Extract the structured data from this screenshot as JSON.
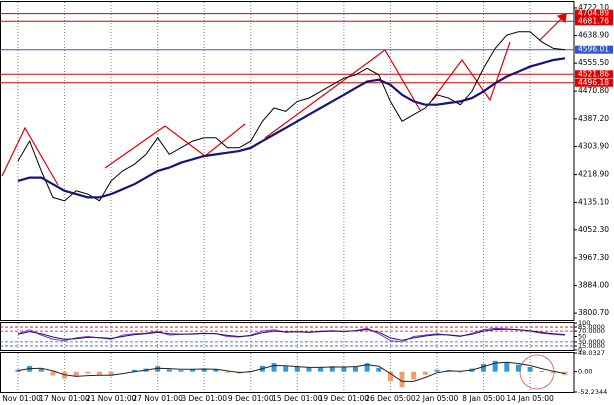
{
  "chart_data": [
    {
      "type": "line",
      "categories": [
        "1 Nov 01:00",
        null,
        null,
        null,
        "17 Nov 01:00",
        null,
        null,
        null,
        "21 Nov 01:00",
        null,
        null,
        null,
        "27 Nov 01:00",
        null,
        null,
        null,
        "3 Dec 01:00",
        null,
        null,
        null,
        "9 Dec 01:00",
        null,
        null,
        null,
        "15 Dec 01:00",
        null,
        null,
        null,
        "19 Dec 01:00",
        null,
        null,
        null,
        "26 Dec 05:00",
        null,
        null,
        null,
        "2 Jan 05:00",
        null,
        null,
        null,
        "8 Jan 05:00",
        null,
        null,
        null,
        "14 Jan 05:00",
        null,
        null,
        null
      ],
      "series": [
        {
          "color": "#000000",
          "values": [
            4260,
            4320,
            4230,
            4150,
            4140,
            4170,
            4160,
            4140,
            4200,
            4230,
            4250,
            4280,
            4330,
            4280,
            4300,
            4320,
            4330,
            4330,
            4300,
            4300,
            4320,
            4380,
            4420,
            4410,
            4440,
            4450,
            4470,
            4490,
            4510,
            4520,
            4540,
            4520,
            4440,
            4380,
            4400,
            4420,
            4460,
            4450,
            4430,
            4470,
            4540,
            4600,
            4640,
            4650,
            4650,
            4620,
            4600,
            4596
          ]
        },
        {
          "color": "#14147a",
          "values": [
            4200,
            4210,
            4210,
            4190,
            4170,
            4160,
            4150,
            4150,
            4160,
            4175,
            4190,
            4210,
            4230,
            4240,
            4255,
            4265,
            4275,
            4280,
            4285,
            4290,
            4300,
            4320,
            4340,
            4360,
            4380,
            4400,
            4420,
            4440,
            4460,
            4480,
            4500,
            4505,
            4490,
            4460,
            4440,
            4430,
            4430,
            4435,
            4440,
            4450,
            4470,
            4495,
            4515,
            4530,
            4545,
            4555,
            4565,
            4570
          ]
        }
      ],
      "ylim": [
        3780,
        4740
      ],
      "yticks": [
        {
          "value": 4722.1,
          "label": "4722.10"
        },
        {
          "value": 4638.9,
          "label": "4638.90"
        },
        {
          "value": 4555.5,
          "label": "4555.50"
        },
        {
          "value": 4470.8,
          "label": "4470.80"
        },
        {
          "value": 4387.2,
          "label": "4387.20"
        },
        {
          "value": 4303.9,
          "label": "4303.90"
        },
        {
          "value": 4218.9,
          "label": "4218.90"
        },
        {
          "value": 4135.1,
          "label": "4135.10"
        },
        {
          "value": 4052.3,
          "label": "4052.30"
        },
        {
          "value": 3967.3,
          "label": "3967.30"
        },
        {
          "value": 3884,
          "label": "3884.00"
        },
        {
          "value": 3800.7,
          "label": "3800.70"
        }
      ],
      "levels": [
        {
          "value": 4704.89,
          "color": "#e00000"
        },
        {
          "value": 4681.76,
          "color": "#e00000"
        },
        {
          "value": 4596.01,
          "color": "#3355cc"
        },
        {
          "value": 4521.86,
          "color": "#e00000"
        },
        {
          "value": 4496.18,
          "color": "#e00000"
        }
      ]
    },
    {
      "type": "line",
      "series": [
        {
          "color": "#8a2be2",
          "values": [
            60,
            75,
            55,
            40,
            35,
            45,
            50,
            45,
            40,
            55,
            60,
            62,
            70,
            55,
            58,
            60,
            62,
            60,
            50,
            48,
            55,
            70,
            75,
            65,
            68,
            65,
            70,
            72,
            68,
            72,
            80,
            60,
            35,
            30,
            50,
            55,
            60,
            55,
            50,
            62,
            75,
            80,
            78,
            75,
            70,
            62,
            58,
            55
          ]
        },
        {
          "color": "#1a1a60",
          "values": [
            58,
            68,
            60,
            48,
            40,
            42,
            47,
            46,
            43,
            50,
            57,
            60,
            65,
            60,
            58,
            59,
            61,
            60,
            54,
            50,
            53,
            64,
            70,
            67,
            67,
            66,
            68,
            70,
            69,
            71,
            76,
            66,
            45,
            36,
            45,
            52,
            57,
            56,
            52,
            58,
            70,
            76,
            77,
            75,
            71,
            65,
            60,
            57
          ]
        }
      ],
      "ylim": [
        0,
        100
      ],
      "yticks": [
        100,
        {
          "value": 85,
          "label": "85.0000"
        },
        {
          "value": 70,
          "label": "70.0000"
        },
        50,
        {
          "value": 30,
          "label": "30.0000"
        },
        {
          "value": 15,
          "label": "15.0000"
        },
        0
      ],
      "levels": [
        {
          "value": 85,
          "color": "#e00000"
        },
        {
          "value": 70,
          "color": "#e00000"
        },
        {
          "value": 30,
          "color": "#3355cc"
        },
        {
          "value": 15,
          "color": "#3355cc"
        }
      ]
    },
    {
      "type": "combo",
      "series": [
        {
          "type": "bar",
          "color": "#3399dd",
          "negative_color": "#f0a070",
          "values": [
            5,
            15,
            8,
            -10,
            -18,
            -12,
            -5,
            -8,
            -10,
            0,
            5,
            8,
            14,
            6,
            4,
            6,
            8,
            6,
            -3,
            -5,
            2,
            15,
            22,
            14,
            12,
            10,
            12,
            14,
            12,
            14,
            22,
            10,
            -25,
            -40,
            -20,
            -8,
            5,
            4,
            -2,
            8,
            20,
            28,
            24,
            18,
            12,
            2,
            -4,
            -8
          ]
        },
        {
          "type": "line",
          "color": "#222222",
          "values": [
            3,
            8,
            9,
            2,
            -8,
            -12,
            -10,
            -9,
            -9,
            -5,
            0,
            4,
            9,
            8,
            6,
            6,
            7,
            6,
            2,
            -2,
            0,
            8,
            16,
            15,
            13,
            11,
            11,
            12,
            12,
            13,
            18,
            14,
            -5,
            -25,
            -25,
            -15,
            -3,
            2,
            1,
            4,
            13,
            22,
            24,
            21,
            16,
            8,
            1,
            -5
          ]
        }
      ],
      "ylim": [
        -52.2344,
        48.0327
      ],
      "yticks": [
        48.0327,
        {
          "value": 0,
          "label": "0.00"
        },
        -52.2344
      ]
    }
  ]
}
